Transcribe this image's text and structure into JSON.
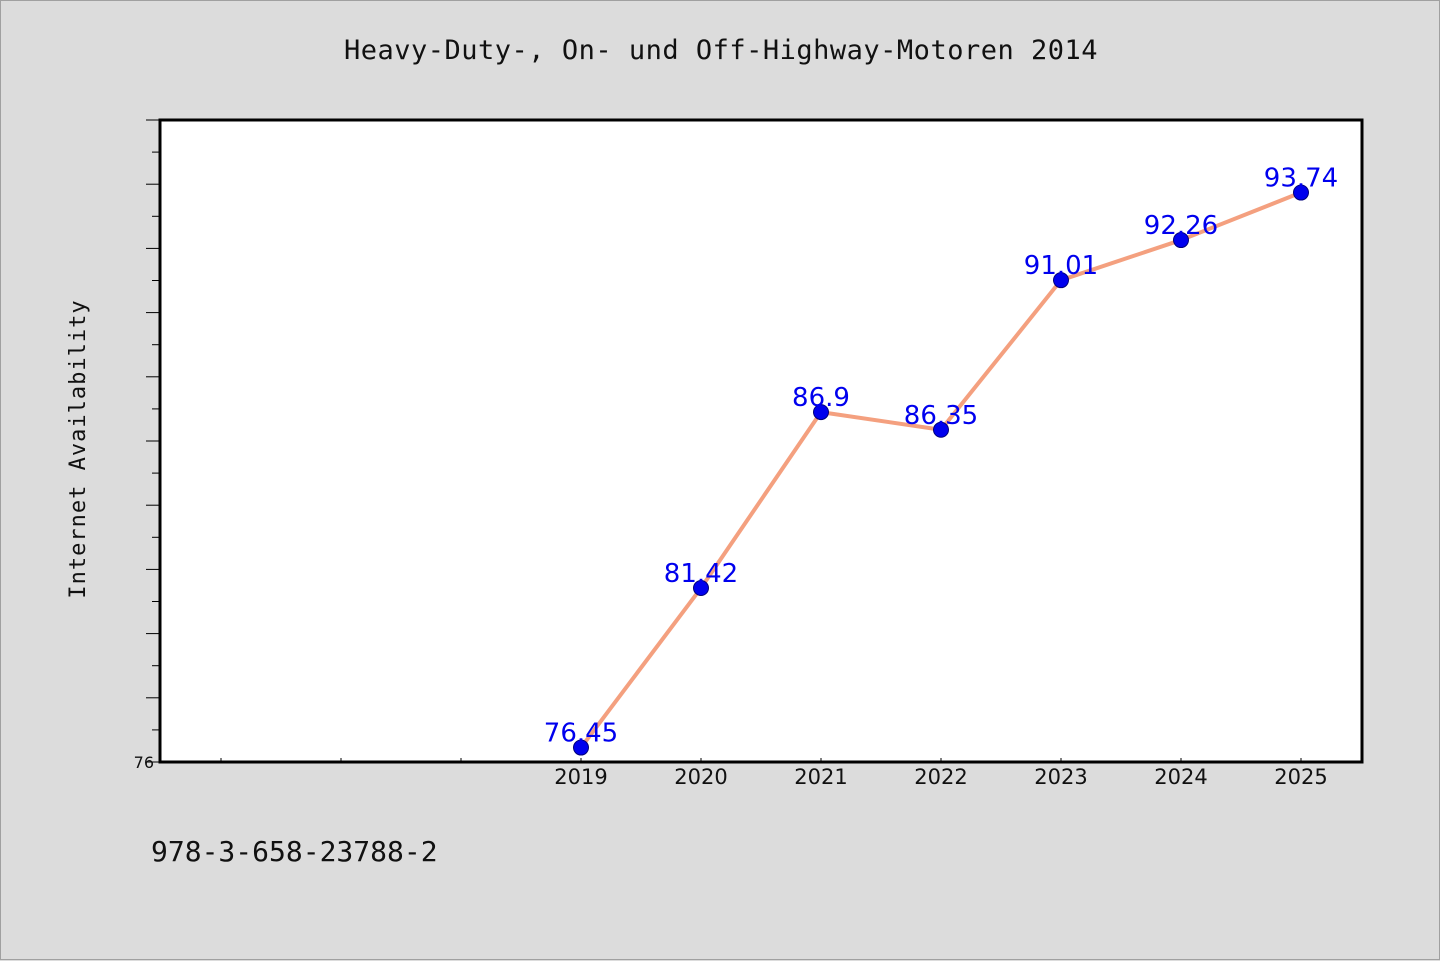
{
  "footer_text": "978-3-658-23788-2",
  "chart_data": {
    "type": "line",
    "title": "Heavy-Duty-, On- und Off-Highway-Motoren 2014",
    "xlabel": "",
    "ylabel": "Internet Availability",
    "categories": [
      "2019",
      "2020",
      "2021",
      "2022",
      "2023",
      "2024",
      "2025"
    ],
    "x_ticks_unlabeled_before": 3,
    "series": [
      {
        "values": [
          76.45,
          81.42,
          86.9,
          86.35,
          91.01,
          92.26,
          93.74
        ]
      }
    ],
    "data_labels": [
      "76.45",
      "81.42",
      "86.9",
      "86.35",
      "91.01",
      "92.26",
      "93.74"
    ],
    "ylim": [
      76,
      96
    ],
    "y_tick_labels": [
      "76"
    ],
    "y_minor_tick_step": 1,
    "grid": false,
    "line_color": "#f4a07f",
    "marker_color": "#0000ee",
    "label_color": "#0000ee"
  }
}
